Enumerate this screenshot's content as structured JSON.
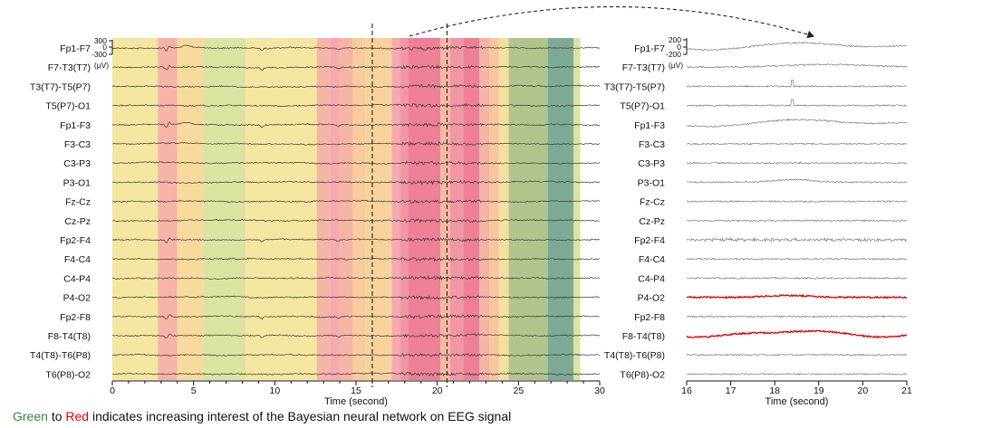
{
  "caption": {
    "word_green": "Green",
    "word_to": "to",
    "word_red": "Red",
    "rest": "indicates increasing interest of the Bayesian neural network on EEG signal",
    "green_color": "#2e8b3a",
    "red_color": "#e00000"
  },
  "chart_data": [
    {
      "type": "line",
      "title": "",
      "xlabel": "Time (second)",
      "ylabel": "",
      "xlim": [
        0,
        30
      ],
      "xticks": [
        0,
        5,
        10,
        15,
        20,
        25,
        30
      ],
      "channels": [
        "Fp1-F7",
        "F7-T3(T7)",
        "T3(T7)-T5(P7)",
        "T5(P7)-O1",
        "Fp1-F3",
        "F3-C3",
        "C3-P3",
        "P3-O1",
        "Fz-Cz",
        "Cz-Pz",
        "Fp2-F4",
        "F4-C4",
        "C4-P4",
        "P4-O2",
        "Fp2-F8",
        "F8-T4(T8)",
        "T4(T8)-T6(P8)",
        "T6(P8)-O2"
      ],
      "scale_bar": {
        "ticks": [
          "300",
          "0",
          "-300"
        ],
        "unit": "(μV)"
      },
      "highlight_window": [
        16,
        20.6
      ],
      "attention_bands": [
        {
          "start": 0,
          "end": 2.8,
          "level": 0.2
        },
        {
          "start": 2.8,
          "end": 4.0,
          "level": 0.62
        },
        {
          "start": 4.0,
          "end": 5.6,
          "level": 0.3
        },
        {
          "start": 5.6,
          "end": 8.2,
          "level": 0.05
        },
        {
          "start": 8.2,
          "end": 12.6,
          "level": 0.2
        },
        {
          "start": 12.6,
          "end": 13.4,
          "level": 0.62
        },
        {
          "start": 13.4,
          "end": 14.0,
          "level": 0.78
        },
        {
          "start": 14.0,
          "end": 14.8,
          "level": 0.62
        },
        {
          "start": 14.8,
          "end": 15.6,
          "level": 0.4
        },
        {
          "start": 15.6,
          "end": 17.2,
          "level": 0.35
        },
        {
          "start": 17.2,
          "end": 17.7,
          "level": 0.78
        },
        {
          "start": 17.7,
          "end": 18.2,
          "level": 0.88
        },
        {
          "start": 18.2,
          "end": 20.2,
          "level": 1.0
        },
        {
          "start": 20.2,
          "end": 20.8,
          "level": 0.55
        },
        {
          "start": 20.8,
          "end": 21.6,
          "level": 0.88
        },
        {
          "start": 21.6,
          "end": 22.6,
          "level": 1.0
        },
        {
          "start": 22.6,
          "end": 23.2,
          "level": 0.62
        },
        {
          "start": 23.2,
          "end": 23.8,
          "level": 0.45
        },
        {
          "start": 23.8,
          "end": 24.4,
          "level": 0.25
        },
        {
          "start": 24.4,
          "end": 26.8,
          "level": -0.2
        },
        {
          "start": 26.8,
          "end": 28.4,
          "level": -0.5
        },
        {
          "start": 28.4,
          "end": 28.8,
          "level": 0.05
        }
      ]
    },
    {
      "type": "line",
      "title": "",
      "xlabel": "Time (second)",
      "ylabel": "",
      "xlim": [
        16,
        21
      ],
      "xticks": [
        16,
        17,
        18,
        19,
        20,
        21
      ],
      "channels": [
        "Fp1-F7",
        "F7-T3(T7)",
        "T3(T7)-T5(P7)",
        "T5(P7)-O1",
        "Fp1-F3",
        "F3-C3",
        "C3-P3",
        "P3-O1",
        "Fz-Cz",
        "Cz-Pz",
        "Fp2-F4",
        "F4-C4",
        "C4-P4",
        "P4-O2",
        "Fp2-F8",
        "F8-T4(T8)",
        "T4(T8)-T6(P8)",
        "T6(P8)-O2"
      ],
      "highlighted_channels": [
        "P4-O2",
        "F8-T4(T8)"
      ],
      "highlight_color": "#e00000",
      "scale_bar": {
        "ticks": [
          "200",
          "0",
          "-200"
        ],
        "unit": "(μV)"
      }
    }
  ]
}
